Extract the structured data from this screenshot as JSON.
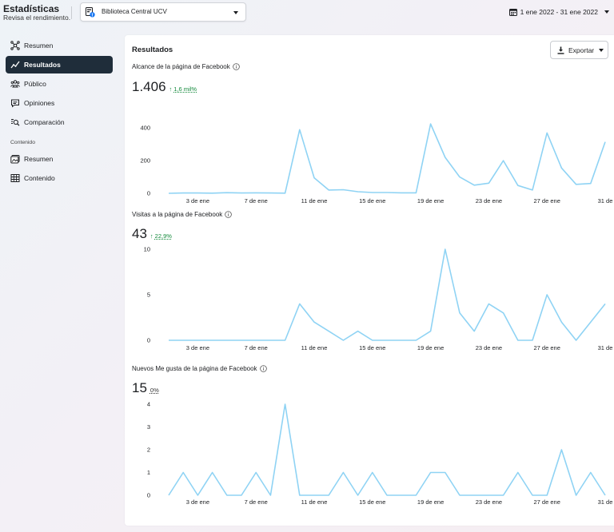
{
  "header": {
    "title": "Estadísticas",
    "subtitle": "Revisa el rendimiento.",
    "page_name": "Biblioteca Central UCV",
    "date_range": "1 ene 2022 - 31 ene 2022"
  },
  "sidebar": {
    "items": [
      {
        "label": "Resumen",
        "icon": "network-icon",
        "active": false
      },
      {
        "label": "Resultados",
        "icon": "trend-line-icon",
        "active": true
      },
      {
        "label": "Público",
        "icon": "people-icon",
        "active": false
      },
      {
        "label": "Opiniones",
        "icon": "speech-bubble-icon",
        "active": false
      },
      {
        "label": "Comparación",
        "icon": "compare-icon",
        "active": false
      }
    ],
    "content_section_label": "Contenido",
    "content_items": [
      {
        "label": "Resumen",
        "icon": "gallery-icon"
      },
      {
        "label": "Contenido",
        "icon": "table-icon"
      }
    ]
  },
  "main": {
    "title": "Resultados",
    "export_label": "Exportar",
    "metrics": [
      {
        "label": "Alcance de la página de Facebook",
        "value": "1.406",
        "trend": "1,6 mil%",
        "trend_direction": "up"
      },
      {
        "label": "Visitas a la página de Facebook",
        "value": "43",
        "trend": "22,9%",
        "trend_direction": "up"
      },
      {
        "label": "Nuevos Me gusta de la página de Facebook",
        "value": "15",
        "trend": "0%",
        "trend_direction": "none"
      }
    ]
  },
  "colors": {
    "line": "#8fd3f4",
    "active_nav_bg": "#1f2d3a",
    "trend_up": "#148a3c"
  },
  "chart_data": [
    {
      "type": "line",
      "title": "Alcance de la página de Facebook",
      "x": [
        "1 ene",
        "2 ene",
        "3 ene",
        "4 ene",
        "5 ene",
        "6 ene",
        "7 ene",
        "8 ene",
        "9 ene",
        "10 ene",
        "11 ene",
        "12 ene",
        "13 ene",
        "14 ene",
        "15 ene",
        "16 ene",
        "17 ene",
        "18 ene",
        "19 ene",
        "20 ene",
        "21 ene",
        "22 ene",
        "23 ene",
        "24 ene",
        "25 ene",
        "26 ene",
        "27 ene",
        "28 ene",
        "29 ene",
        "30 ene",
        "31 ene"
      ],
      "x_tick_labels": [
        "3 de ene",
        "7 de ene",
        "11 de ene",
        "15 de ene",
        "19 de ene",
        "23 de ene",
        "27 de ene",
        "31 de"
      ],
      "y_ticks": [
        0,
        200,
        400
      ],
      "ylim": [
        0,
        450
      ],
      "values": [
        0,
        2,
        2,
        1,
        4,
        2,
        3,
        2,
        1,
        390,
        95,
        20,
        22,
        10,
        5,
        5,
        3,
        3,
        425,
        220,
        100,
        50,
        62,
        200,
        48,
        20,
        370,
        155,
        55,
        60,
        315
      ]
    },
    {
      "type": "line",
      "title": "Visitas a la página de Facebook",
      "x": [
        "1 ene",
        "2 ene",
        "3 ene",
        "4 ene",
        "5 ene",
        "6 ene",
        "7 ene",
        "8 ene",
        "9 ene",
        "10 ene",
        "11 ene",
        "12 ene",
        "13 ene",
        "14 ene",
        "15 ene",
        "16 ene",
        "17 ene",
        "18 ene",
        "19 ene",
        "20 ene",
        "21 ene",
        "22 ene",
        "23 ene",
        "24 ene",
        "25 ene",
        "26 ene",
        "27 ene",
        "28 ene",
        "29 ene",
        "30 ene",
        "31 ene"
      ],
      "x_tick_labels": [
        "3 de ene",
        "7 de ene",
        "11 de ene",
        "15 de ene",
        "19 de ene",
        "23 de ene",
        "27 de ene",
        "31 de"
      ],
      "y_ticks": [
        0,
        5,
        10
      ],
      "ylim": [
        0,
        10
      ],
      "values": [
        0,
        0,
        0,
        0,
        0,
        0,
        0,
        0,
        0,
        4,
        2,
        1,
        0,
        1,
        0,
        0,
        0,
        0,
        1,
        10,
        3,
        1,
        4,
        3,
        0,
        0,
        5,
        2,
        0,
        2,
        4
      ]
    },
    {
      "type": "line",
      "title": "Nuevos Me gusta de la página de Facebook",
      "x": [
        "1 ene",
        "2 ene",
        "3 ene",
        "4 ene",
        "5 ene",
        "6 ene",
        "7 ene",
        "8 ene",
        "9 ene",
        "10 ene",
        "11 ene",
        "12 ene",
        "13 ene",
        "14 ene",
        "15 ene",
        "16 ene",
        "17 ene",
        "18 ene",
        "19 ene",
        "20 ene",
        "21 ene",
        "22 ene",
        "23 ene",
        "24 ene",
        "25 ene",
        "26 ene",
        "27 ene",
        "28 ene",
        "29 ene",
        "30 ene",
        "31 ene"
      ],
      "x_tick_labels": [
        "3 de ene",
        "7 de ene",
        "11 de ene",
        "15 de ene",
        "19 de ene",
        "23 de ene",
        "27 de ene",
        "31 de"
      ],
      "y_ticks": [
        0,
        1,
        2,
        3,
        4
      ],
      "ylim": [
        0,
        4
      ],
      "values": [
        0,
        1,
        0,
        1,
        0,
        0,
        1,
        0,
        4,
        0,
        0,
        0,
        1,
        0,
        1,
        0,
        0,
        0,
        1,
        1,
        0,
        0,
        0,
        0,
        1,
        0,
        0,
        2,
        0,
        1,
        0
      ]
    }
  ]
}
